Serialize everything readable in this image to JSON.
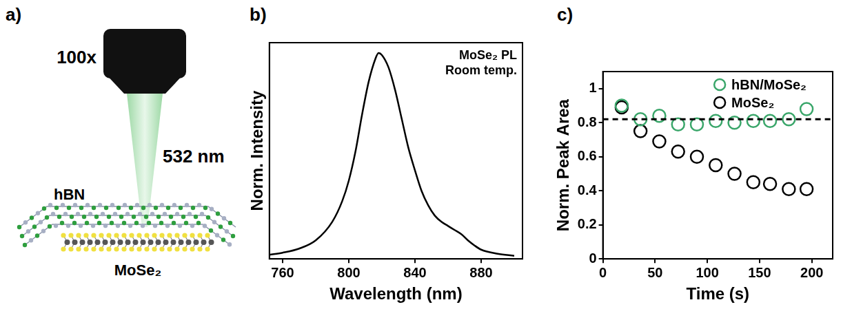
{
  "panel_a": {
    "letter": "a)",
    "objective_label": "100x",
    "laser_label": "532 nm",
    "top_layer_label": "hBN",
    "bottom_layer_label": "MoSe₂"
  },
  "chart_data": [
    {
      "letter": "b)",
      "type": "line",
      "annotation": [
        "MoSe₂ PL",
        "Room temp."
      ],
      "x_label": "Wavelength (nm)",
      "y_label": "Norm. Intensity",
      "x": [
        752,
        760,
        770,
        780,
        790,
        796,
        800,
        804,
        808,
        812,
        816,
        818,
        820,
        824,
        828,
        832,
        836,
        840,
        844,
        848,
        852,
        856,
        860,
        864,
        868,
        872,
        876,
        880,
        890,
        900
      ],
      "values": [
        0.02,
        0.03,
        0.05,
        0.09,
        0.18,
        0.28,
        0.38,
        0.52,
        0.7,
        0.86,
        0.97,
        1.0,
        0.99,
        0.93,
        0.82,
        0.68,
        0.54,
        0.43,
        0.33,
        0.26,
        0.21,
        0.18,
        0.16,
        0.14,
        0.12,
        0.09,
        0.065,
        0.045,
        0.025,
        0.015
      ],
      "color": "#000000",
      "xlim": [
        752,
        905
      ],
      "xticks": [
        760,
        800,
        840,
        880
      ],
      "ylim": [
        0,
        1.05
      ],
      "tick_labels": "x",
      "grid": false
    },
    {
      "letter": "c)",
      "type": "scatter",
      "x_label": "Time (s)",
      "y_label": "Norm. Peak Area",
      "x": [
        18,
        36,
        54,
        72,
        90,
        108,
        126,
        144,
        160,
        178,
        195
      ],
      "series": [
        {
          "name": "hBN/MoSe₂",
          "color": "#3aa66a",
          "marker": "open_circle",
          "values": [
            0.9,
            0.82,
            0.84,
            0.79,
            0.79,
            0.81,
            0.8,
            0.81,
            0.81,
            0.82,
            0.88
          ]
        },
        {
          "name": "MoSe₂",
          "color": "#000000",
          "marker": "open_circle",
          "values": [
            0.89,
            0.75,
            0.69,
            0.63,
            0.6,
            0.55,
            0.5,
            0.45,
            0.44,
            0.41,
            0.41
          ]
        }
      ],
      "reference_line": {
        "y": 0.82,
        "line_style": "dashed"
      },
      "xlim": [
        0,
        220
      ],
      "xticks": [
        0,
        50,
        100,
        150,
        200
      ],
      "ylim": [
        0,
        1.1
      ],
      "yticks": [
        0,
        0.2,
        0.4,
        0.6,
        0.8,
        1
      ],
      "grid": false,
      "legend": "upper right"
    }
  ]
}
